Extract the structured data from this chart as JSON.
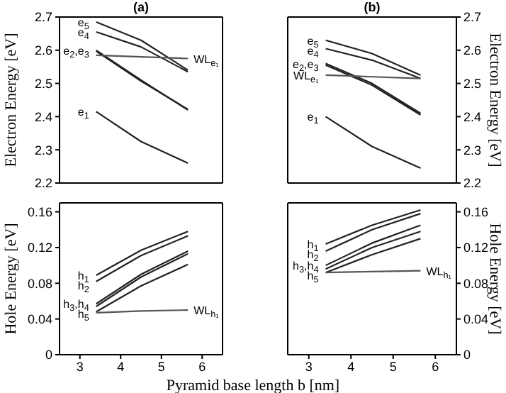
{
  "chart_data": [
    {
      "type": "line",
      "title": "(a)",
      "ylabel": "Electron Energy [eV]",
      "x": [
        3.4,
        4.5,
        5.65
      ],
      "xlim": [
        2.5,
        6.5
      ],
      "xticks": [
        3,
        4,
        5,
        6
      ],
      "ylim": [
        2.2,
        2.7
      ],
      "yticks": [
        2.2,
        2.3,
        2.4,
        2.5,
        2.6,
        2.7
      ],
      "tick_labels": "y",
      "marker": "none",
      "legend": false,
      "series": [
        {
          "name": "e$_{5}$",
          "color": "#222222",
          "values": [
            2.685,
            2.63,
            2.54
          ]
        },
        {
          "name": "e$_{4}$",
          "color": "#222222",
          "values": [
            2.655,
            2.61,
            2.535
          ]
        },
        {
          "name": "e$_{2}$,e$_{3}$",
          "color": "#222222",
          "values": [
            2.6,
            2.51,
            2.42
          ]
        },
        {
          "color": "#222222",
          "values": [
            2.597,
            2.507,
            2.422
          ]
        },
        {
          "name": "WL$_{e₁}$",
          "color": "#555555",
          "values": [
            2.585,
            2.58,
            2.575
          ]
        },
        {
          "name": "e$_{1}$",
          "color": "#222222",
          "values": [
            2.415,
            2.325,
            2.26
          ]
        }
      ]
    },
    {
      "type": "line",
      "title": "(b)",
      "ylabel": "Electron Energy [eV]",
      "x": [
        3.4,
        4.5,
        5.65
      ],
      "xlim": [
        2.5,
        6.5
      ],
      "xticks": [
        3,
        4,
        5,
        6
      ],
      "ylim": [
        2.2,
        2.7
      ],
      "yticks": [
        2.2,
        2.3,
        2.4,
        2.5,
        2.6,
        2.7
      ],
      "tick_labels": "y",
      "marker": "none",
      "legend": false,
      "series": [
        {
          "name": "e$_{5}$",
          "color": "#222222",
          "values": [
            2.63,
            2.59,
            2.525
          ]
        },
        {
          "name": "e$_{4}$",
          "color": "#222222",
          "values": [
            2.605,
            2.57,
            2.515
          ]
        },
        {
          "name": "e$_{2}$,e$_{3}$",
          "color": "#222222",
          "values": [
            2.56,
            2.5,
            2.41
          ]
        },
        {
          "color": "#222222",
          "values": [
            2.555,
            2.495,
            2.405
          ]
        },
        {
          "name": "WL$_{e₁}$",
          "color": "#555555",
          "values": [
            2.525,
            2.52,
            2.515
          ]
        },
        {
          "name": "e$_{1}$",
          "color": "#222222",
          "values": [
            2.4,
            2.31,
            2.245
          ]
        }
      ]
    },
    {
      "type": "line",
      "ylabel": "Hole Energy [eV]",
      "xlabel": "Pyramid base length b [nm]",
      "x": [
        3.4,
        4.5,
        5.65
      ],
      "xlim": [
        2.5,
        6.5
      ],
      "xticks": [
        3,
        4,
        5,
        6
      ],
      "ylim": [
        0,
        0.17
      ],
      "yticks": [
        0,
        0.04,
        0.08,
        0.12,
        0.16
      ],
      "marker": "none",
      "legend": false,
      "series": [
        {
          "name": "h$_{1}$",
          "color": "#222222",
          "values": [
            0.089,
            0.117,
            0.138
          ]
        },
        {
          "name": "h$_{2}$",
          "color": "#222222",
          "values": [
            0.082,
            0.111,
            0.133
          ]
        },
        {
          "name": "h$_{3}$,h$_{4}$",
          "color": "#222222",
          "values": [
            0.057,
            0.09,
            0.116
          ]
        },
        {
          "color": "#222222",
          "values": [
            0.054,
            0.087,
            0.113
          ]
        },
        {
          "name": "h$_{5}$",
          "color": "#222222",
          "values": [
            0.048,
            0.077,
            0.101
          ]
        },
        {
          "name": "WL$_{h₁}$",
          "color": "#555555",
          "values": [
            0.047,
            0.049,
            0.05
          ]
        }
      ]
    },
    {
      "type": "line",
      "ylabel": "Hole Energy [eV]",
      "x": [
        3.4,
        4.5,
        5.65
      ],
      "xlim": [
        2.5,
        6.5
      ],
      "xticks": [
        3,
        4,
        5,
        6
      ],
      "ylim": [
        0,
        0.17
      ],
      "yticks": [
        0,
        0.04,
        0.08,
        0.12,
        0.16
      ],
      "marker": "none",
      "legend": false,
      "series": [
        {
          "name": "h$_{1}$",
          "color": "#222222",
          "values": [
            0.124,
            0.145,
            0.162
          ]
        },
        {
          "name": "h$_{2}$",
          "color": "#222222",
          "values": [
            0.116,
            0.14,
            0.158
          ]
        },
        {
          "name": "h$_{3}$,h$_{4}$",
          "color": "#222222",
          "values": [
            0.1,
            0.125,
            0.145
          ]
        },
        {
          "color": "#222222",
          "values": [
            0.096,
            0.12,
            0.138
          ]
        },
        {
          "name": "h$_{5}$",
          "color": "#222222",
          "values": [
            0.092,
            0.112,
            0.13
          ]
        },
        {
          "name": "WL$_{h₁}$",
          "color": "#555555",
          "values": [
            0.092,
            0.093,
            0.094
          ]
        }
      ]
    }
  ]
}
